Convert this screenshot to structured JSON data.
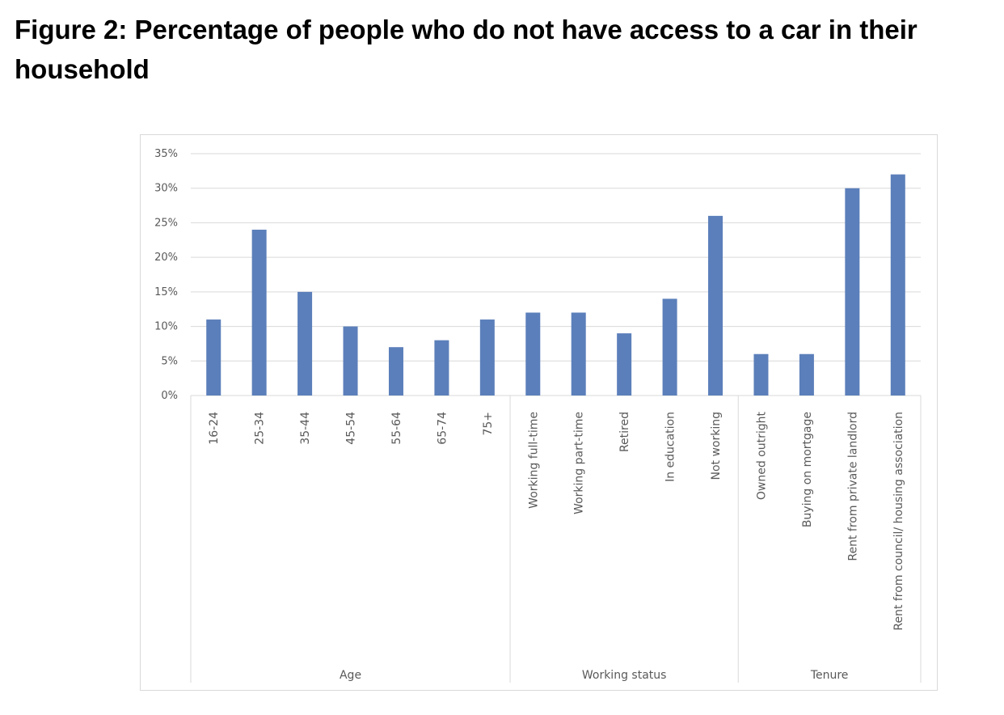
{
  "title": "Figure 2: Percentage of people who do not have access to a car in their household",
  "chart_data": {
    "type": "bar",
    "title": "Figure 2: Percentage of people who do not have access to a car in their household",
    "xlabel": "",
    "ylabel": "",
    "ylim": [
      0,
      35
    ],
    "yticks": [
      "0%",
      "5%",
      "10%",
      "15%",
      "20%",
      "25%",
      "30%",
      "35%"
    ],
    "y_tick_values": [
      0,
      5,
      10,
      15,
      20,
      25,
      30,
      35
    ],
    "grid": true,
    "legend": "none",
    "bar_color": "#5b7fba",
    "grid_color": "#d9d9d9",
    "axis_text_color": "#595959",
    "categories": [
      "16-24",
      "25-34",
      "35-44",
      "45-54",
      "55-64",
      "65-74",
      "75+",
      "Working full-time",
      "Working part-time",
      "Retired",
      "In education",
      "Not working",
      "Owned outright",
      "Buying on mortgage",
      "Rent from private landlord",
      "Rent from council/ housing association"
    ],
    "values": [
      11,
      24,
      15,
      10,
      7,
      8,
      11,
      12,
      12,
      9,
      14,
      26,
      6,
      6,
      30,
      32
    ],
    "groups": [
      {
        "name": "Age",
        "count": 7
      },
      {
        "name": "Working status",
        "count": 5
      },
      {
        "name": "Tenure",
        "count": 4
      }
    ]
  }
}
